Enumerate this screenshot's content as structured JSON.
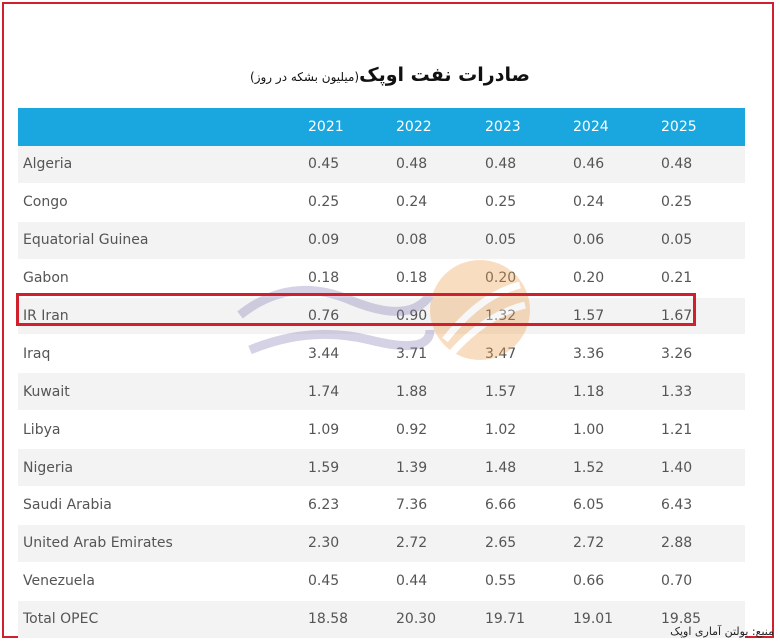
{
  "title": "صادرات نفت اوپک",
  "subtitle": "(میلیون بشکه در روز)",
  "source": "منبع: بولتن آماری اوپک",
  "colors": {
    "header": "#1aa7df",
    "highlight": "#d0202e"
  },
  "chart_data": {
    "type": "table",
    "title": "صادرات نفت اوپک (میلیون بشکه در روز)",
    "columns": [
      "2021",
      "2022",
      "2023",
      "2024",
      "2025"
    ],
    "rows": [
      {
        "country": "Algeria",
        "values": [
          "0.45",
          "0.48",
          "0.48",
          "0.46",
          "0.48"
        ]
      },
      {
        "country": "Congo",
        "values": [
          "0.25",
          "0.24",
          "0.25",
          "0.24",
          "0.25"
        ]
      },
      {
        "country": "Equatorial Guinea",
        "values": [
          "0.09",
          "0.08",
          "0.05",
          "0.06",
          "0.05"
        ]
      },
      {
        "country": "Gabon",
        "values": [
          "0.18",
          "0.18",
          "0.20",
          "0.20",
          "0.21"
        ]
      },
      {
        "country": "IR Iran",
        "values": [
          "0.76",
          "0.90",
          "1.32",
          "1.57",
          "1.67"
        ]
      },
      {
        "country": "Iraq",
        "values": [
          "3.44",
          "3.71",
          "3.47",
          "3.36",
          "3.26"
        ]
      },
      {
        "country": "Kuwait",
        "values": [
          "1.74",
          "1.88",
          "1.57",
          "1.18",
          "1.33"
        ]
      },
      {
        "country": "Libya",
        "values": [
          "1.09",
          "0.92",
          "1.02",
          "1.00",
          "1.21"
        ]
      },
      {
        "country": "Nigeria",
        "values": [
          "1.59",
          "1.39",
          "1.48",
          "1.52",
          "1.40"
        ]
      },
      {
        "country": "Saudi Arabia",
        "values": [
          "6.23",
          "7.36",
          "6.66",
          "6.05",
          "6.43"
        ]
      },
      {
        "country": "United Arab Emirates",
        "values": [
          "2.30",
          "2.72",
          "2.65",
          "2.72",
          "2.88"
        ]
      },
      {
        "country": "Venezuela",
        "values": [
          "0.45",
          "0.44",
          "0.55",
          "0.66",
          "0.70"
        ]
      },
      {
        "country": "Total OPEC",
        "values": [
          "18.58",
          "20.30",
          "19.71",
          "19.01",
          "19.85"
        ]
      }
    ],
    "highlighted_row": "IR Iran"
  }
}
